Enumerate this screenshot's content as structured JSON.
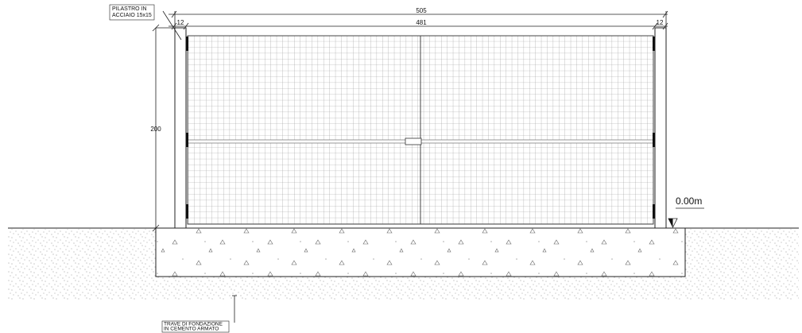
{
  "pillar_label": {
    "lines": [
      "PILASTRO IN",
      "ACCIAIO 15x15"
    ]
  },
  "dimensions": {
    "total_width": "505",
    "left_pillar": "12",
    "gate_width": "481",
    "right_pillar": "12",
    "height": "200"
  },
  "level": "0.00m",
  "foundation_label": {
    "lines": [
      "TRAVE DI FONDAZIONE",
      "IN CEMENTO ARMATO"
    ]
  }
}
